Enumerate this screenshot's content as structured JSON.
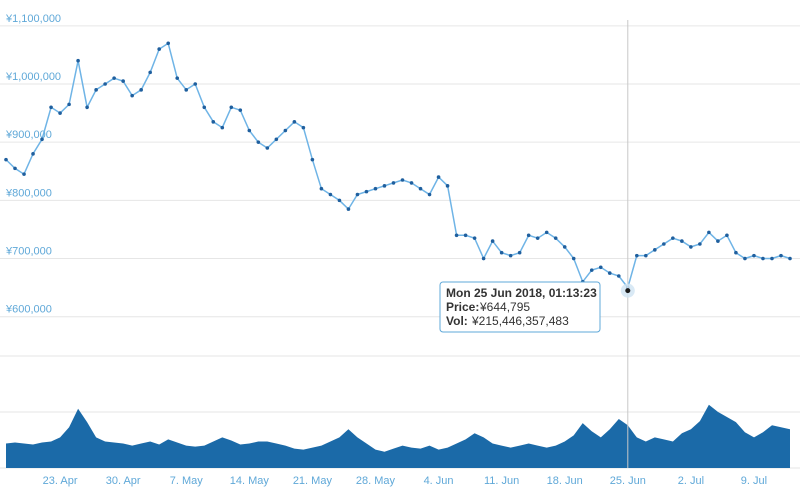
{
  "chart_data": {
    "type": "line",
    "price": {
      "ylim": [
        560000,
        1110000
      ],
      "y_ticks": [
        600000,
        700000,
        800000,
        900000,
        1000000,
        1100000
      ],
      "y_tick_labels": [
        "¥600,000",
        "¥700,000",
        "¥800,000",
        "¥900,000",
        "¥1,000,000",
        "¥1,100,000"
      ],
      "x_dates": [
        "2018-04-17",
        "2018-04-18",
        "2018-04-19",
        "2018-04-20",
        "2018-04-21",
        "2018-04-22",
        "2018-04-23",
        "2018-04-24",
        "2018-04-25",
        "2018-04-26",
        "2018-04-27",
        "2018-04-28",
        "2018-04-29",
        "2018-04-30",
        "2018-05-01",
        "2018-05-02",
        "2018-05-03",
        "2018-05-04",
        "2018-05-05",
        "2018-05-06",
        "2018-05-07",
        "2018-05-08",
        "2018-05-09",
        "2018-05-10",
        "2018-05-11",
        "2018-05-12",
        "2018-05-13",
        "2018-05-14",
        "2018-05-15",
        "2018-05-16",
        "2018-05-17",
        "2018-05-18",
        "2018-05-19",
        "2018-05-20",
        "2018-05-21",
        "2018-05-22",
        "2018-05-23",
        "2018-05-24",
        "2018-05-25",
        "2018-05-26",
        "2018-05-27",
        "2018-05-28",
        "2018-05-29",
        "2018-05-30",
        "2018-05-31",
        "2018-06-01",
        "2018-06-02",
        "2018-06-03",
        "2018-06-04",
        "2018-06-05",
        "2018-06-06",
        "2018-06-07",
        "2018-06-08",
        "2018-06-09",
        "2018-06-10",
        "2018-06-11",
        "2018-06-12",
        "2018-06-13",
        "2018-06-14",
        "2018-06-15",
        "2018-06-16",
        "2018-06-17",
        "2018-06-18",
        "2018-06-19",
        "2018-06-20",
        "2018-06-21",
        "2018-06-22",
        "2018-06-23",
        "2018-06-24",
        "2018-06-25",
        "2018-06-26",
        "2018-06-27",
        "2018-06-28",
        "2018-06-29",
        "2018-06-30",
        "2018-07-01",
        "2018-07-02",
        "2018-07-03",
        "2018-07-04",
        "2018-07-05",
        "2018-07-06",
        "2018-07-07",
        "2018-07-08",
        "2018-07-09",
        "2018-07-10",
        "2018-07-11",
        "2018-07-12",
        "2018-07-13"
      ],
      "values": [
        870000,
        855000,
        845000,
        880000,
        905000,
        960000,
        950000,
        965000,
        1040000,
        960000,
        990000,
        1000000,
        1010000,
        1005000,
        980000,
        990000,
        1020000,
        1060000,
        1070000,
        1010000,
        990000,
        1000000,
        960000,
        935000,
        925000,
        960000,
        955000,
        920000,
        900000,
        890000,
        905000,
        920000,
        935000,
        925000,
        870000,
        820000,
        810000,
        800000,
        785000,
        810000,
        815000,
        820000,
        825000,
        830000,
        835000,
        830000,
        820000,
        810000,
        840000,
        825000,
        740000,
        740000,
        735000,
        700000,
        730000,
        710000,
        705000,
        710000,
        740000,
        735000,
        745000,
        735000,
        720000,
        700000,
        660000,
        680000,
        685000,
        675000,
        670000,
        650000,
        705000,
        705000,
        715000,
        725000,
        735000,
        730000,
        720000,
        725000,
        745000,
        730000,
        740000,
        710000,
        700000,
        705000,
        700000,
        700000,
        705000,
        700000
      ]
    },
    "volume": {
      "values": [
        0.24,
        0.25,
        0.24,
        0.23,
        0.25,
        0.26,
        0.3,
        0.4,
        0.58,
        0.45,
        0.3,
        0.26,
        0.25,
        0.24,
        0.22,
        0.24,
        0.26,
        0.23,
        0.28,
        0.25,
        0.22,
        0.21,
        0.22,
        0.26,
        0.3,
        0.27,
        0.23,
        0.24,
        0.26,
        0.26,
        0.24,
        0.22,
        0.19,
        0.18,
        0.2,
        0.22,
        0.26,
        0.3,
        0.38,
        0.3,
        0.24,
        0.18,
        0.16,
        0.19,
        0.22,
        0.2,
        0.19,
        0.22,
        0.18,
        0.2,
        0.24,
        0.28,
        0.34,
        0.3,
        0.24,
        0.22,
        0.2,
        0.22,
        0.24,
        0.22,
        0.2,
        0.22,
        0.26,
        0.32,
        0.44,
        0.36,
        0.3,
        0.38,
        0.48,
        0.42,
        0.3,
        0.26,
        0.3,
        0.28,
        0.26,
        0.34,
        0.38,
        0.46,
        0.62,
        0.55,
        0.5,
        0.45,
        0.35,
        0.3,
        0.35,
        0.42,
        0.4,
        0.38
      ]
    },
    "x_ticks": [
      "23. Apr",
      "30. Apr",
      "7. May",
      "14. May",
      "21. May",
      "28. May",
      "4. Jun",
      "11. Jun",
      "18. Jun",
      "25. Jun",
      "2. Jul",
      "9. Jul"
    ],
    "x_tick_dates": [
      "2018-04-23",
      "2018-04-30",
      "2018-05-07",
      "2018-05-14",
      "2018-05-21",
      "2018-05-28",
      "2018-06-04",
      "2018-06-11",
      "2018-06-18",
      "2018-06-25",
      "2018-07-02",
      "2018-07-09"
    ],
    "grid": true,
    "line_color": "#1f5f9e",
    "volume_color": "#1b6aa8",
    "crosshair_date": "2018-06-25",
    "tooltip": {
      "title": "Mon 25 Jun 2018, 01:13:23",
      "price_label": "Price:",
      "price_value": "¥644,795",
      "vol_label": "Vol:",
      "vol_value": "¥215,446,357,483"
    }
  }
}
